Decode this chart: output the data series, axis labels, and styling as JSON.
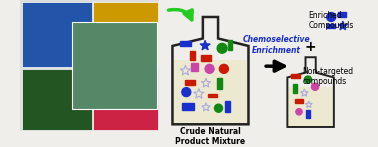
{
  "arrow_label_line1": "Chemoselective",
  "arrow_label_line2": "Enrichment",
  "flask1_label": "Crude Natural\nProduct Mixture",
  "enriched_label": "Enriched\nCompounds",
  "nontargeted_label": "Non-targeted\ncompounds",
  "plus_sign": "+",
  "bg_color": "#f0eeea",
  "flask_bg": "#ede9d0",
  "flask_outline": "#222222",
  "blue": "#1a30cc",
  "red": "#cc1a00",
  "green": "#118811",
  "magenta": "#cc44aa",
  "star_outline_color": "#aaaadd",
  "green_arrow_color": "#22cc22",
  "label_color": "#111111",
  "arrow_label_color": "#1a30cc",
  "photo_tl": "#2255aa",
  "photo_tr": "#cc9900",
  "photo_bl": "#225522",
  "photo_br": "#cc2244",
  "photo_center": "#558866"
}
